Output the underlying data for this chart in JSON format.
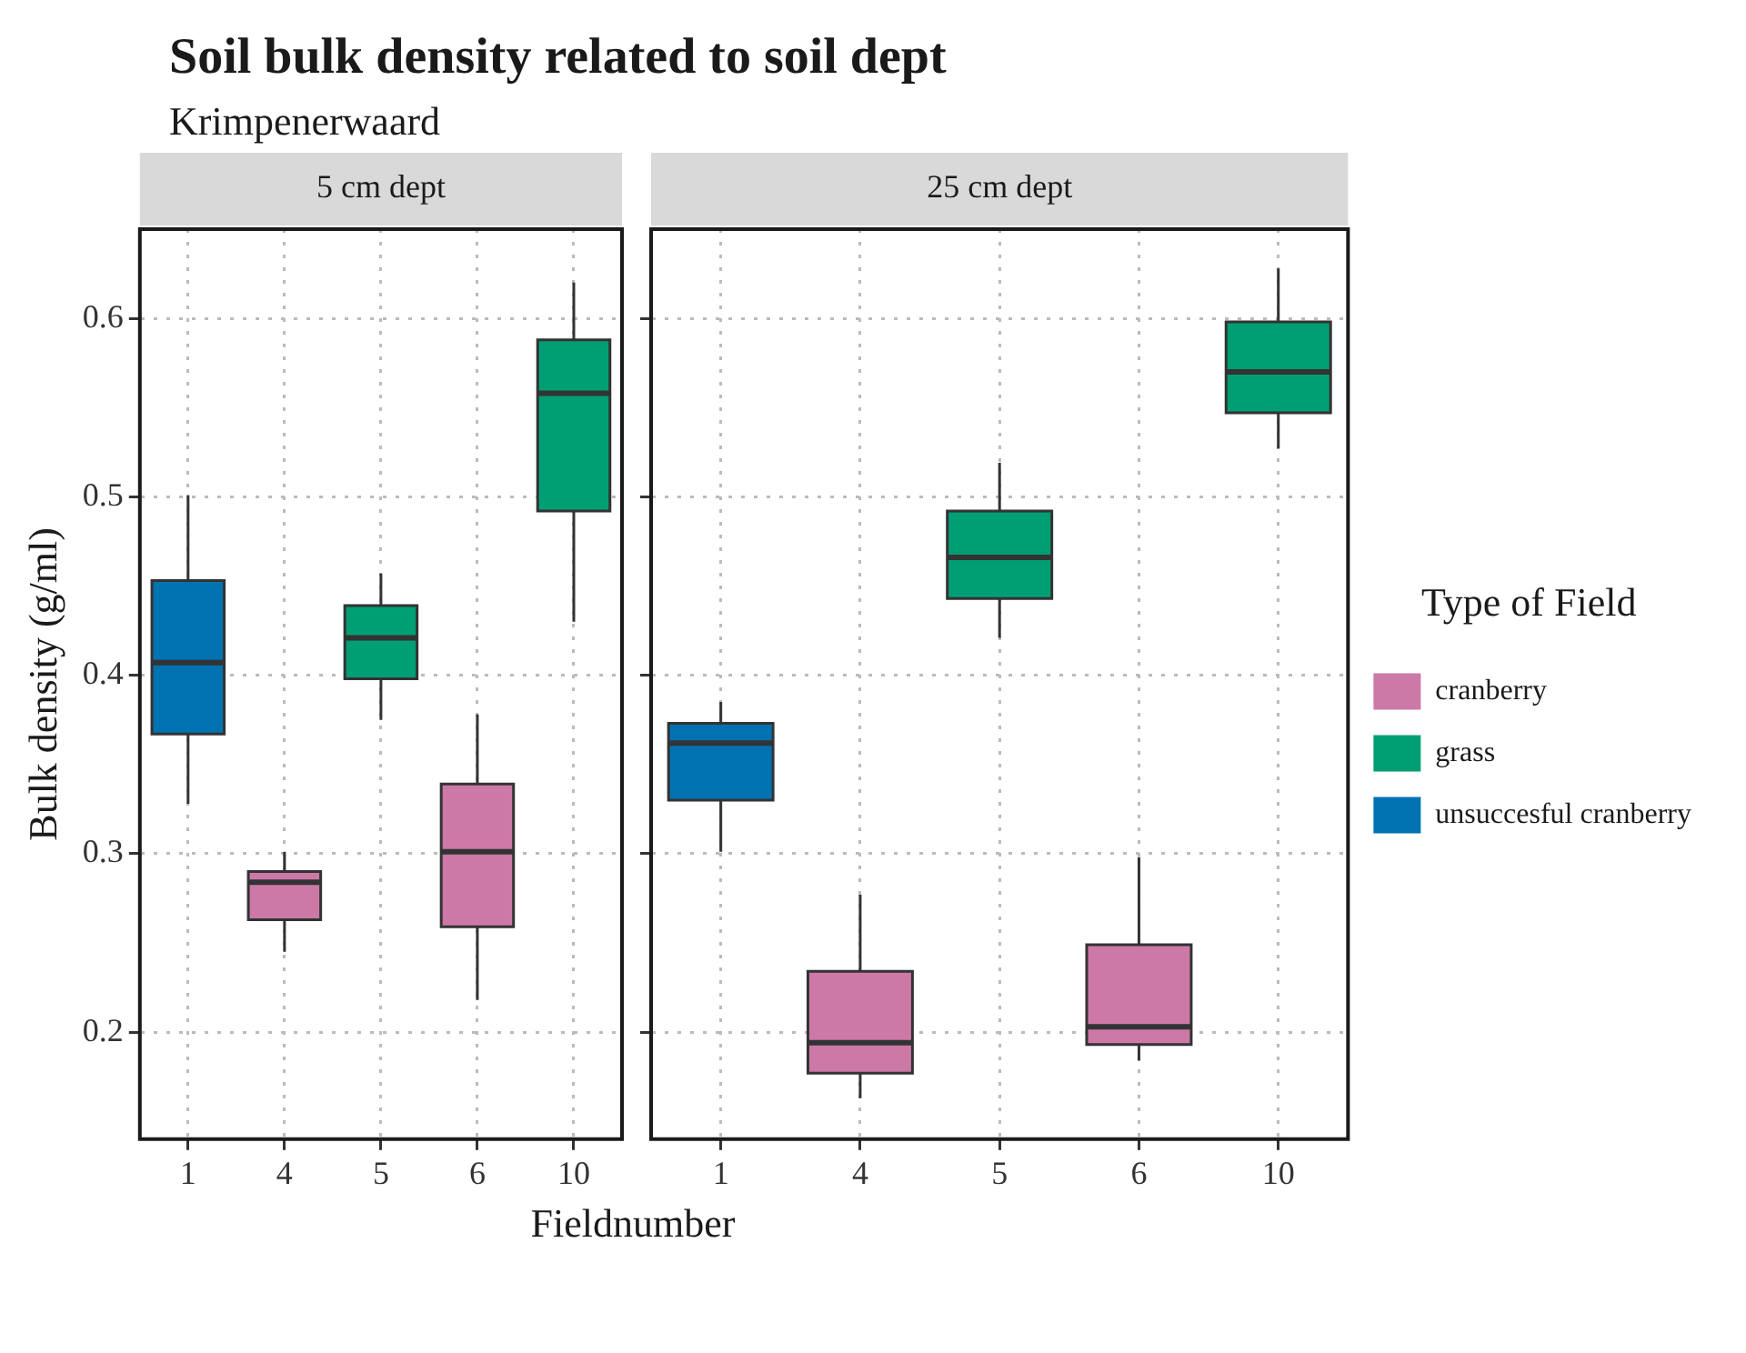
{
  "chart_data": [
    {
      "type": "other",
      "title": "Soil bulk density related to soil dept",
      "subtitle": "Krimpenerwaard"
    },
    {
      "type": "box",
      "title": "5 cm dept",
      "xlabel": "Fieldnumber",
      "ylabel": "Bulk density (g/ml)",
      "categories": [
        "1",
        "4",
        "5",
        "6",
        "10"
      ],
      "ylim": [
        0.14,
        0.65
      ],
      "yticks": [
        0.2,
        0.3,
        0.4,
        0.5,
        0.6
      ],
      "grid": true,
      "legend": false,
      "series": [
        {
          "color": "#cc79a7",
          "boxes": [
            null,
            {
              "low": 0.245,
              "q1": 0.263,
              "median": 0.284,
              "q3": 0.29,
              "high": 0.301
            },
            null,
            {
              "low": 0.218,
              "q1": 0.259,
              "median": 0.301,
              "q3": 0.339,
              "high": 0.378
            },
            null
          ]
        },
        {
          "color": "#009e73",
          "boxes": [
            null,
            null,
            {
              "low": 0.375,
              "q1": 0.398,
              "median": 0.421,
              "q3": 0.439,
              "high": 0.457
            },
            null,
            {
              "low": 0.43,
              "q1": 0.492,
              "median": 0.558,
              "q3": 0.588,
              "high": 0.62
            }
          ]
        },
        {
          "color": "#0072b2",
          "boxes": [
            {
              "low": 0.328,
              "q1": 0.367,
              "median": 0.407,
              "q3": 0.453,
              "high": 0.501
            },
            null,
            null,
            null,
            null
          ]
        }
      ]
    },
    {
      "type": "box",
      "title": "25 cm dept",
      "categories": [
        "1",
        "4",
        "5",
        "6",
        "10"
      ],
      "ylim": [
        0.14,
        0.65
      ],
      "yticks": [
        0.2,
        0.3,
        0.4,
        0.5,
        0.6
      ],
      "grid": true,
      "tick_labels": "x",
      "legend": "right",
      "legend_title": "Type of Field",
      "series": [
        {
          "name": "cranberry",
          "color": "#cc79a7",
          "boxes": [
            null,
            {
              "low": 0.163,
              "q1": 0.177,
              "median": 0.194,
              "q3": 0.234,
              "high": 0.277
            },
            null,
            {
              "low": 0.184,
              "q1": 0.193,
              "median": 0.203,
              "q3": 0.249,
              "high": 0.298
            },
            null
          ]
        },
        {
          "name": "grass",
          "color": "#009e73",
          "boxes": [
            null,
            null,
            {
              "low": 0.421,
              "q1": 0.443,
              "median": 0.466,
              "q3": 0.492,
              "high": 0.519
            },
            null,
            {
              "low": 0.527,
              "q1": 0.547,
              "median": 0.57,
              "q3": 0.598,
              "high": 0.628
            }
          ]
        },
        {
          "name": "unsuccesful cranberry",
          "color": "#0072b2",
          "boxes": [
            {
              "low": 0.301,
              "q1": 0.33,
              "median": 0.362,
              "q3": 0.373,
              "high": 0.385
            },
            null,
            null,
            null,
            null
          ]
        }
      ]
    }
  ]
}
